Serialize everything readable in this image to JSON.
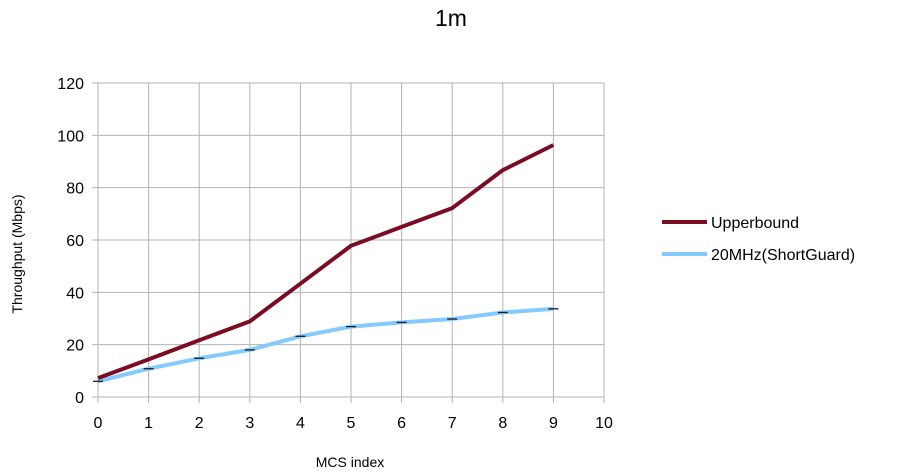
{
  "chart_data": {
    "type": "line",
    "title": "1m",
    "xlabel": "MCS index",
    "ylabel": "Throughput (Mbps)",
    "xlim": [
      0,
      10
    ],
    "ylim": [
      0,
      120
    ],
    "x_ticks": [
      0,
      1,
      2,
      3,
      4,
      5,
      6,
      7,
      8,
      9,
      10
    ],
    "y_ticks": [
      0,
      20,
      40,
      60,
      80,
      100,
      120
    ],
    "grid": true,
    "legend_position": "right",
    "series": [
      {
        "name": "Upperbound",
        "color": "#7b0c22",
        "x": [
          0,
          1,
          2,
          3,
          4,
          5,
          6,
          7,
          8,
          9
        ],
        "values": [
          7.2,
          14.4,
          21.7,
          28.9,
          43.3,
          57.8,
          65.0,
          72.2,
          86.7,
          96.3
        ]
      },
      {
        "name": "20MHz(ShortGuard)",
        "color": "#83caff",
        "x": [
          0,
          1,
          2,
          3,
          4,
          5,
          6,
          7,
          8,
          9
        ],
        "values": [
          6.0,
          10.8,
          14.8,
          18.0,
          23.2,
          26.9,
          28.5,
          29.8,
          32.3,
          33.7
        ]
      }
    ]
  }
}
